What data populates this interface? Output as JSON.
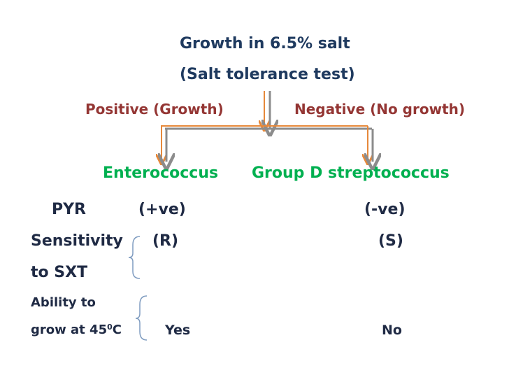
{
  "title_line1": "Growth in 6.5% salt",
  "title_line2": "(Salt tolerance test)",
  "branch_positive": "Positive (Growth)",
  "branch_negative": "Negative (No growth)",
  "organism_left": "Enterococcus",
  "organism_right": "Group D streptococcus",
  "rows": {
    "pyr_label": "PYR",
    "pyr_left": "(+ve)",
    "pyr_right": "(-ve)",
    "sxt_label_line1": "Sensitivity",
    "sxt_label_line2": "to SXT",
    "sxt_left": "(R)",
    "sxt_right": "(S)",
    "temp_label_line1": "Ability to",
    "temp_label_line2_prefix": "grow at 45",
    "temp_label_line2_sup": "0",
    "temp_label_line2_suffix": "C",
    "temp_left": "Yes",
    "temp_right": "No"
  },
  "colors": {
    "title": "#1f3a5f",
    "branch_text": "#943634",
    "organism_text": "#00b050",
    "row_text": "#1f2a44",
    "orange_arrow": "#e6883a",
    "gray_arrow": "#8c8c8c",
    "bracket": "#7f9cc0"
  }
}
